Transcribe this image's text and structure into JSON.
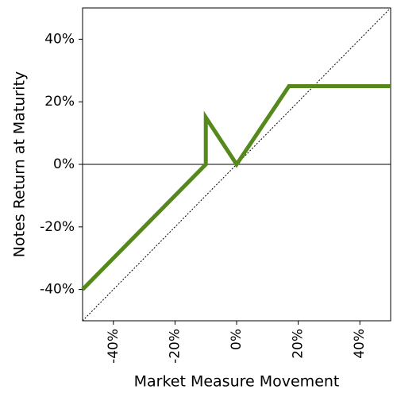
{
  "chart_data": {
    "type": "line",
    "x_label": "Market Measure Movement",
    "y_label": "Notes Return at Maturity",
    "series": [
      {
        "color": "#55891c",
        "x": [
          -50,
          -10,
          -10,
          0,
          17,
          50
        ],
        "values": [
          -40,
          0,
          15,
          0,
          25,
          25
        ]
      }
    ],
    "xlim": [
      -50,
      50
    ],
    "ylim": [
      -50,
      50
    ],
    "xticks": [
      {
        "value": -40,
        "label": "-40%"
      },
      {
        "value": -20,
        "label": "-20%"
      },
      {
        "value": 0,
        "label": "0%"
      },
      {
        "value": 20,
        "label": "20%"
      },
      {
        "value": 40,
        "label": "40%"
      }
    ],
    "yticks": [
      {
        "value": -40,
        "label": "-40%"
      },
      {
        "value": -20,
        "label": "-20%"
      },
      {
        "value": 0,
        "label": "0%"
      },
      {
        "value": 20,
        "label": "20%"
      },
      {
        "value": 40,
        "label": "40%"
      }
    ],
    "diagonal_reference": true,
    "zero_line": true
  }
}
